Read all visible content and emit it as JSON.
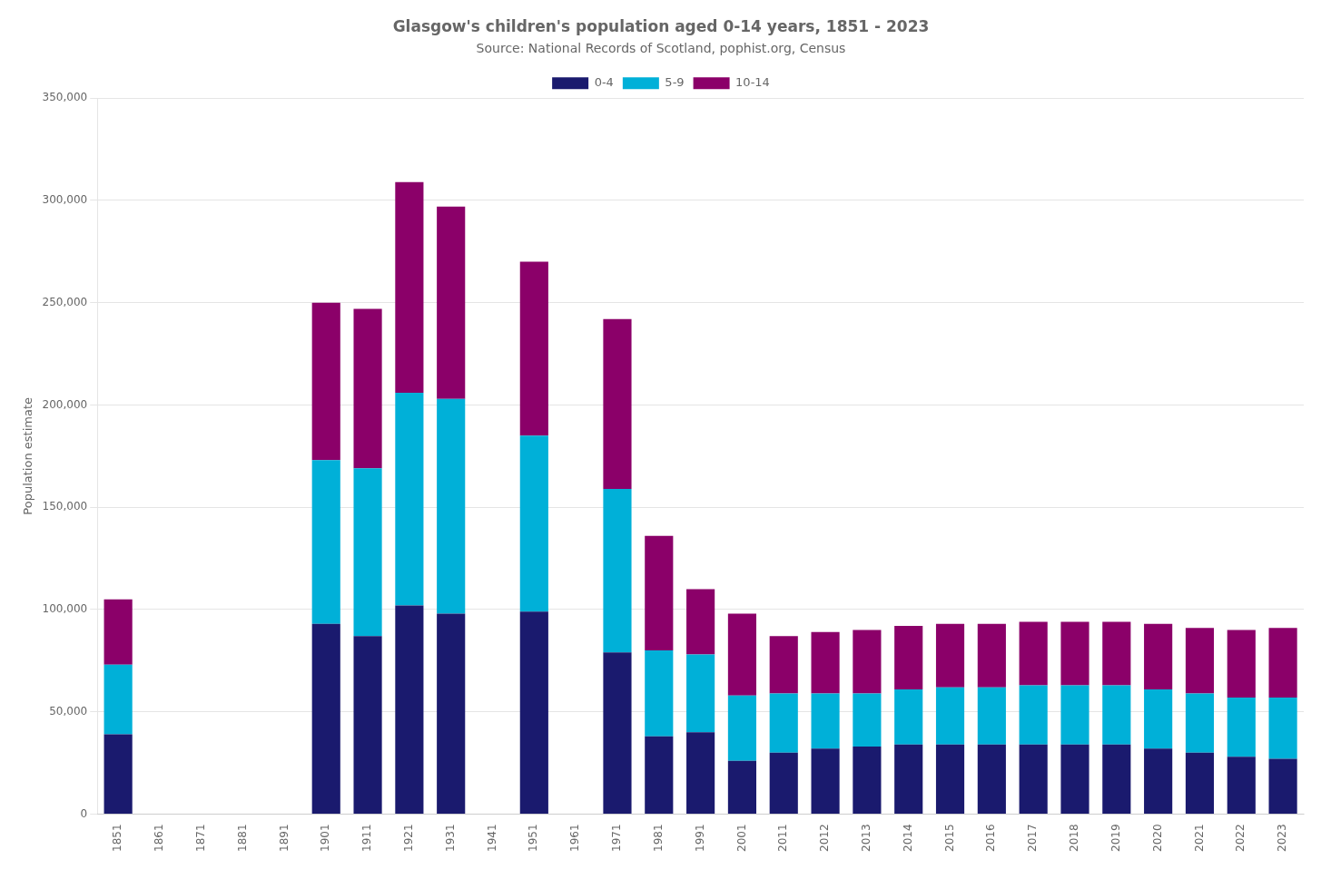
{
  "chart_data": {
    "type": "bar",
    "stacked": true,
    "title": "Glasgow's children's population aged 0-14 years, 1851 - 2023",
    "subtitle": "Source: National Records of Scotland, pophist.org, Census",
    "ylabel": "Population estimate",
    "categories": [
      "1851",
      "1861",
      "1871",
      "1881",
      "1891",
      "1901",
      "1911",
      "1921",
      "1931",
      "1941",
      "1951",
      "1961",
      "1971",
      "1981",
      "1991",
      "2001",
      "2011",
      "2012",
      "2013",
      "2014",
      "2015",
      "2016",
      "2017",
      "2018",
      "2019",
      "2020",
      "2021",
      "2022",
      "2023"
    ],
    "series": [
      {
        "name": "0-4",
        "color": "#1a1a6e",
        "values": [
          39000,
          0,
          0,
          0,
          0,
          93000,
          87000,
          102000,
          98000,
          0,
          99000,
          0,
          79000,
          38000,
          40000,
          26000,
          30000,
          32000,
          33000,
          34000,
          34000,
          34000,
          34000,
          34000,
          34000,
          32000,
          30000,
          28000,
          27000
        ]
      },
      {
        "name": "5-9",
        "color": "#00b0d8",
        "values": [
          34000,
          0,
          0,
          0,
          0,
          80000,
          82000,
          104000,
          105000,
          0,
          86000,
          0,
          80000,
          42000,
          38000,
          32000,
          29000,
          27000,
          26000,
          27000,
          28000,
          28000,
          29000,
          29000,
          29000,
          29000,
          29000,
          29000,
          30000
        ]
      },
      {
        "name": "10-14",
        "color": "#8b0069",
        "values": [
          32000,
          0,
          0,
          0,
          0,
          77000,
          78000,
          103000,
          94000,
          0,
          85000,
          0,
          83000,
          56000,
          32000,
          40000,
          28000,
          30000,
          31000,
          31000,
          31000,
          31000,
          31000,
          31000,
          31000,
          32000,
          32000,
          33000,
          34000
        ]
      }
    ],
    "ylim": [
      0,
      350000
    ],
    "yticks": [
      0,
      {
        "value": 50000,
        "label": "50,000"
      },
      {
        "value": 100000,
        "label": "100,000"
      },
      {
        "value": 150000,
        "label": "150,000"
      },
      {
        "value": 200000,
        "label": "200,000"
      },
      {
        "value": 250000,
        "label": "250,000"
      },
      {
        "value": 300000,
        "label": "300,000"
      },
      {
        "value": 350000,
        "label": "350,000"
      }
    ],
    "grid": true,
    "legend": "top"
  }
}
